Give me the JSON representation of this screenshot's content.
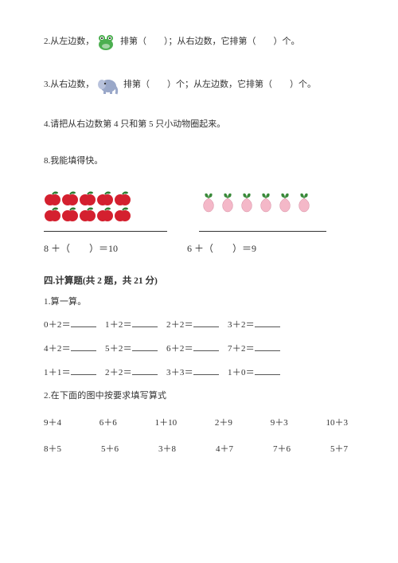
{
  "q2": {
    "prefix": "2.从左边数，",
    "mid": " 排第（　　）；从右边数，它排第（　　）个。"
  },
  "q3": {
    "prefix": "3.从右边数，",
    "mid": " 排第（　　）个；从左边数，它排第（　　）个。"
  },
  "q4": "4.请把从右边数第 4 只和第 5 只小动物圈起来。",
  "q8": "8.我能填得快。",
  "apples": {
    "rows": 2,
    "perRow": 5,
    "fillColor": "#d4202f",
    "leafColor": "#2e7d32",
    "underlineWidth": 155
  },
  "peaches": {
    "count": 6,
    "fillColor": "#f4b8c8",
    "leafColor": "#3a8a3a",
    "underlineWidth": 160
  },
  "equations": {
    "left": "8 ＋（　　）＝10",
    "right": "6 ＋（　　）＝9"
  },
  "section4": {
    "heading": "四.计算题(共 2 题，共 21 分)",
    "q1": "1.算一算。",
    "rows": [
      [
        "0＋2＝",
        "1＋2＝",
        "2＋2＝",
        "3＋2＝"
      ],
      [
        "4＋2＝",
        "5＋2＝",
        "6＋2＝",
        "7＋2＝"
      ],
      [
        "1＋1＝",
        "2＋2＝",
        "3＋3＝",
        "1＋0＝"
      ]
    ],
    "q2": "2.在下面的图中按要求填写算式",
    "exprRows": [
      [
        "9＋4",
        "6＋6",
        "1＋10",
        "2＋9",
        "9＋3",
        "10＋3"
      ],
      [
        "8＋5",
        "5＋6",
        "3＋8",
        "4＋7",
        "7＋6",
        "5＋7"
      ]
    ]
  },
  "icons": {
    "frogColor": "#4caf50",
    "frogDark": "#2e7d32",
    "elephantColor": "#9aa8c9",
    "elephantDark": "#6b7aa0"
  }
}
